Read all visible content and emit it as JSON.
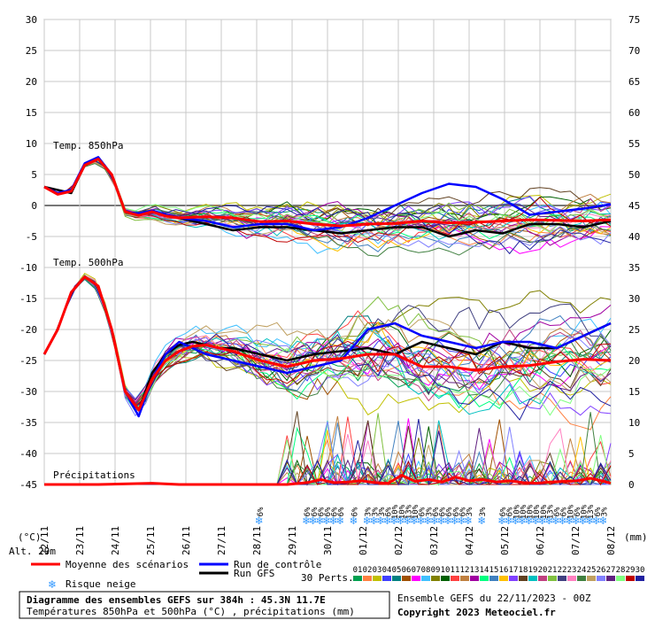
{
  "chart_data": {
    "type": "line",
    "title": "Diagramme des ensembles GEFS sur 384h : 45.3N 11.7E",
    "subtitle": "Températures 850hPa et 500hPa (°C) , précipitations (mm)",
    "run_info": "Ensemble GEFS du 22/11/2023 - 00Z",
    "copyright": "Copyright 2023 Meteociel.fr",
    "left_axis_label": "(°C)",
    "right_axis_label": "(mm)",
    "alt_label": "Alt. 29m",
    "left_ticks": [
      30,
      25,
      20,
      15,
      10,
      5,
      0,
      -5,
      -10,
      -15,
      -20,
      -25,
      -30,
      -35,
      -40,
      -45
    ],
    "right_ticks": [
      75,
      70,
      65,
      60,
      55,
      50,
      45,
      40,
      35,
      30,
      25,
      20,
      15,
      10,
      5,
      0
    ],
    "left_range": [
      -45,
      30
    ],
    "right_range": [
      0,
      75
    ],
    "x_ticks": [
      "22/11",
      "23/11",
      "24/11",
      "25/11",
      "26/11",
      "27/11",
      "28/11",
      "29/11",
      "30/11",
      "01/12",
      "02/12",
      "03/12",
      "04/12",
      "05/12",
      "06/12",
      "07/12",
      "08/12"
    ],
    "panel_labels": {
      "t850": "Temp. 850hPa",
      "t500": "Temp. 500hPa",
      "precip": "Précipitations"
    },
    "legend": {
      "mean": "Moyenne des scénarios",
      "control": "Run de contrôle",
      "gfs": "Run GFS",
      "snow": "Risque neige",
      "perts": "30 Perts.",
      "colors": {
        "mean": "#ff0000",
        "control": "#0000ff",
        "gfs": "#000000"
      }
    },
    "pert_numbers": [
      "01",
      "02",
      "03",
      "04",
      "05",
      "06",
      "07",
      "08",
      "09",
      "10",
      "11",
      "12",
      "13",
      "14",
      "15",
      "16",
      "17",
      "18",
      "19",
      "20",
      "21",
      "22",
      "23",
      "24",
      "25",
      "26",
      "27",
      "28",
      "29",
      "30"
    ],
    "pert_colors": [
      "#00a050",
      "#ff8040",
      "#c0c000",
      "#4040ff",
      "#008080",
      "#a05000",
      "#ff00ff",
      "#40c0ff",
      "#808000",
      "#006000",
      "#ff4040",
      "#c08040",
      "#a000a0",
      "#00ff80",
      "#4080c0",
      "#ffc000",
      "#8040ff",
      "#604020",
      "#00c0c0",
      "#c04080",
      "#80c040",
      "#404080",
      "#ff80c0",
      "#408040",
      "#c0a060",
      "#8080ff",
      "#602080",
      "#80ff80",
      "#c00000",
      "#2020a0"
    ],
    "snow_risk": [
      {
        "t": 64,
        "pct": "6%"
      },
      {
        "t": 78,
        "pct": "6%"
      },
      {
        "t": 80,
        "pct": "6%"
      },
      {
        "t": 82,
        "pct": "6%"
      },
      {
        "t": 84,
        "pct": "6%"
      },
      {
        "t": 86,
        "pct": "6%"
      },
      {
        "t": 88,
        "pct": "6%"
      },
      {
        "t": 92,
        "pct": "6%"
      },
      {
        "t": 96,
        "pct": "3%"
      },
      {
        "t": 98,
        "pct": "3%"
      },
      {
        "t": 100,
        "pct": "3%"
      },
      {
        "t": 102,
        "pct": "6%"
      },
      {
        "t": 104,
        "pct": "10%"
      },
      {
        "t": 106,
        "pct": "10%"
      },
      {
        "t": 108,
        "pct": "13%"
      },
      {
        "t": 110,
        "pct": "10%"
      },
      {
        "t": 112,
        "pct": "6%"
      },
      {
        "t": 114,
        "pct": "3%"
      },
      {
        "t": 116,
        "pct": "6%"
      },
      {
        "t": 118,
        "pct": "6%"
      },
      {
        "t": 120,
        "pct": "6%"
      },
      {
        "t": 122,
        "pct": "6%"
      },
      {
        "t": 124,
        "pct": "6%"
      },
      {
        "t": 126,
        "pct": "3%"
      },
      {
        "t": 130,
        "pct": "3%"
      },
      {
        "t": 136,
        "pct": "6%"
      },
      {
        "t": 138,
        "pct": "6%"
      },
      {
        "t": 140,
        "pct": "10%"
      },
      {
        "t": 142,
        "pct": "10%"
      },
      {
        "t": 144,
        "pct": "10%"
      },
      {
        "t": 146,
        "pct": "10%"
      },
      {
        "t": 148,
        "pct": "10%"
      },
      {
        "t": 150,
        "pct": "13%"
      },
      {
        "t": 152,
        "pct": "6%"
      },
      {
        "t": 154,
        "pct": "6%"
      },
      {
        "t": 156,
        "pct": "10%"
      },
      {
        "t": 158,
        "pct": "6%"
      },
      {
        "t": 160,
        "pct": "10%"
      },
      {
        "t": 162,
        "pct": "13%"
      },
      {
        "t": 164,
        "pct": "6%"
      },
      {
        "t": 166,
        "pct": "3%"
      }
    ],
    "series": [
      {
        "name": "Moyenne 850hPa",
        "x": [
          0,
          4,
          8,
          12,
          16,
          20,
          24,
          28,
          32,
          36,
          40,
          48,
          56,
          64,
          72,
          80,
          88,
          96,
          104,
          112,
          120,
          128,
          136,
          144,
          152,
          160,
          168
        ],
        "values": [
          3,
          1.8,
          2.3,
          6.5,
          7.5,
          5,
          -1,
          -1.6,
          -1,
          -1.7,
          -2,
          -1.8,
          -2,
          -2.6,
          -2.5,
          -3,
          -3.3,
          -3,
          -2.9,
          -2.5,
          -2.8,
          -2.7,
          -2.5,
          -2.3,
          -2.4,
          -2.5,
          -2.3
        ]
      },
      {
        "name": "Contrôle 850hPa",
        "x": [
          0,
          4,
          8,
          12,
          16,
          20,
          24,
          28,
          32,
          36,
          40,
          48,
          56,
          64,
          72,
          80,
          88,
          96,
          104,
          112,
          120,
          128,
          136,
          144,
          152,
          160,
          168
        ],
        "values": [
          3,
          2,
          2.5,
          6.8,
          7.8,
          5,
          -1,
          -1.3,
          -0.8,
          -1.5,
          -2,
          -2.5,
          -3.5,
          -3,
          -3,
          -4,
          -3.5,
          -2,
          0,
          2,
          3.5,
          3,
          1,
          -1.5,
          -1,
          -0.5,
          0.2
        ]
      },
      {
        "name": "GFS 850hPa",
        "x": [
          0,
          4,
          8,
          12,
          16,
          20,
          24,
          28,
          32,
          36,
          40,
          48,
          56,
          64,
          72,
          80,
          88,
          96,
          104,
          112,
          120,
          128,
          136,
          144,
          152,
          160,
          168
        ],
        "values": [
          3,
          2.5,
          2,
          6.5,
          7.5,
          5,
          -1,
          -1.5,
          -1,
          -1.5,
          -2,
          -3,
          -4,
          -3.5,
          -3.5,
          -4,
          -4.5,
          -4,
          -3.5,
          -3.5,
          -5,
          -4,
          -4.5,
          -3,
          -3,
          -3.5,
          -2.5
        ]
      },
      {
        "name": "Moyenne 500hPa",
        "x": [
          0,
          4,
          8,
          12,
          16,
          20,
          24,
          28,
          32,
          36,
          40,
          44,
          48,
          52,
          56,
          64,
          72,
          80,
          88,
          96,
          104,
          112,
          120,
          128,
          136,
          144,
          152,
          160,
          168
        ],
        "values": [
          -24,
          -20,
          -14,
          -11.5,
          -13,
          -20,
          -30,
          -33,
          -28,
          -25,
          -23.5,
          -22.7,
          -22.5,
          -23,
          -23.5,
          -25,
          -26,
          -25,
          -24.7,
          -24,
          -24,
          -26,
          -26,
          -26.6,
          -26,
          -25.8,
          -25.2,
          -24.8,
          -25
        ]
      },
      {
        "name": "Contrôle 500hPa",
        "x": [
          0,
          4,
          8,
          12,
          16,
          20,
          24,
          28,
          32,
          36,
          40,
          44,
          48,
          52,
          56,
          64,
          72,
          80,
          88,
          96,
          104,
          112,
          120,
          128,
          136,
          144,
          152,
          160,
          168
        ],
        "values": [
          -24,
          -20,
          -14,
          -11.5,
          -13,
          -20,
          -30,
          -34,
          -28,
          -24,
          -22,
          -23,
          -24,
          -24.5,
          -25,
          -26,
          -27,
          -26,
          -25,
          -20,
          -19,
          -21,
          -22,
          -23,
          -22,
          -22,
          -23,
          -21,
          -19
        ]
      },
      {
        "name": "GFS 500hPa",
        "x": [
          0,
          4,
          8,
          12,
          16,
          20,
          24,
          28,
          32,
          36,
          40,
          44,
          48,
          52,
          56,
          64,
          72,
          80,
          88,
          96,
          104,
          112,
          120,
          128,
          136,
          144,
          152,
          160,
          168
        ],
        "values": [
          -24,
          -20,
          -14,
          -11.5,
          -13,
          -20,
          -30,
          -33,
          -27,
          -24,
          -22.5,
          -22,
          -22.5,
          -23,
          -23,
          -24,
          -25,
          -24,
          -23.5,
          -23,
          -24,
          -22,
          -23,
          -24,
          -22,
          -23,
          -23,
          -21,
          -19
        ]
      },
      {
        "name": "Moyenne précipitations (mm)",
        "x": [
          0,
          16,
          32,
          40,
          48,
          56,
          64,
          72,
          78,
          82,
          86,
          90,
          94,
          98,
          102,
          106,
          110,
          114,
          118,
          122,
          126,
          130,
          134,
          138,
          142,
          146,
          150,
          154,
          158,
          162,
          166,
          168
        ],
        "values": [
          0,
          0,
          0.2,
          0,
          0,
          0,
          0,
          0,
          0.3,
          0.8,
          0.3,
          0.4,
          0.6,
          0.3,
          0.2,
          1.5,
          0.5,
          0.8,
          0.4,
          1.2,
          0.6,
          0.8,
          0.4,
          0.6,
          0.3,
          0.2,
          0.4,
          0.5,
          0.6,
          1,
          0.5,
          0.2
        ]
      }
    ]
  }
}
